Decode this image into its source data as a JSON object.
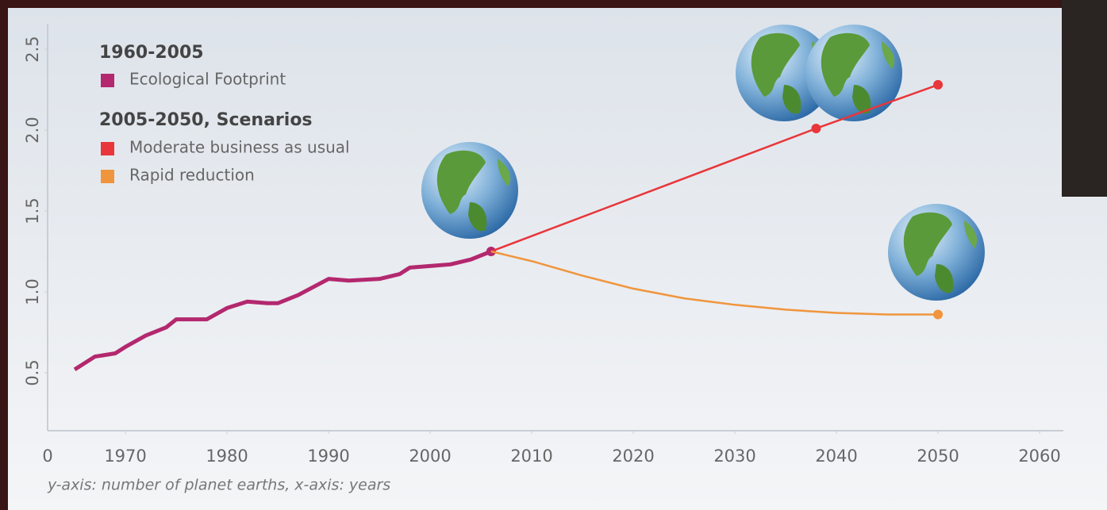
{
  "chart_data": {
    "type": "line",
    "legend_headings": [
      "1960-2005",
      "2005-2050, Scenarios"
    ],
    "caption": "y-axis: number of planet earths, x-axis: years",
    "x_origin_label": "0",
    "xlim": [
      1962.34,
      2062.34
    ],
    "xticks": [
      1970,
      1980,
      1990,
      2000,
      2010,
      2020,
      2030,
      2040,
      2050,
      2060
    ],
    "ylim": [
      0.142,
      2.657
    ],
    "yticks": [
      {
        "value": 0.5,
        "label": "0.5"
      },
      {
        "value": 1.0,
        "label": "1.0"
      },
      {
        "value": 1.5,
        "label": "1.5"
      },
      {
        "value": 2.0,
        "label": "2.0"
      },
      {
        "value": 2.5,
        "label": "2.5"
      }
    ],
    "series": [
      {
        "name": "Ecological Footprint",
        "color": "#b3286e",
        "x": [
          1965,
          1967,
          1969,
          1970,
          1972,
          1974,
          1975,
          1977,
          1978,
          1980,
          1982,
          1984,
          1985,
          1987,
          1990,
          1992,
          1995,
          1997,
          1998,
          2000,
          2002,
          2004,
          2006
        ],
        "values": [
          0.52,
          0.6,
          0.62,
          0.66,
          0.73,
          0.78,
          0.83,
          0.83,
          0.83,
          0.9,
          0.94,
          0.93,
          0.93,
          0.98,
          1.08,
          1.07,
          1.08,
          1.11,
          1.15,
          1.16,
          1.17,
          1.2,
          1.25
        ]
      },
      {
        "name": "Moderate business as usual",
        "color": "#e8363a",
        "x": [
          2006,
          2038,
          2050
        ],
        "values": [
          1.25,
          2.01,
          2.28
        ]
      },
      {
        "name": "Rapid reduction",
        "color": "#f0953c",
        "x": [
          2006,
          2010,
          2015,
          2020,
          2025,
          2030,
          2035,
          2040,
          2045,
          2050
        ],
        "values": [
          1.25,
          1.19,
          1.1,
          1.02,
          0.96,
          0.92,
          0.89,
          0.87,
          0.86,
          0.86
        ]
      }
    ]
  }
}
